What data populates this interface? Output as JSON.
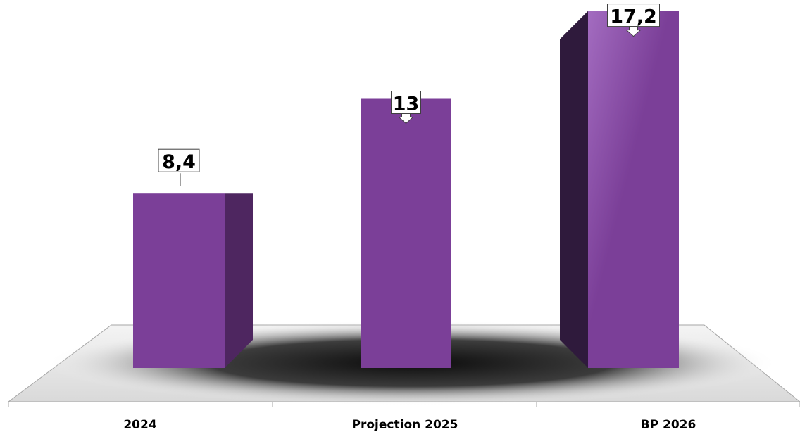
{
  "chart_data": {
    "type": "bar",
    "categories": [
      "2024",
      "Projection 2025",
      "BP 2026"
    ],
    "values": [
      8.4,
      13,
      17.2
    ],
    "value_labels": [
      "8,4",
      "13",
      "17,2"
    ],
    "title": "",
    "xlabel": "",
    "ylabel": "",
    "ylim": [
      0,
      18
    ],
    "grid": false,
    "legend": "none",
    "style": "3d",
    "colors": {
      "bar_front": "#7b3f98",
      "bar_side": "#4e2660",
      "bar_front_top": "#a36cc0",
      "floor": "#bfbfbf"
    }
  }
}
